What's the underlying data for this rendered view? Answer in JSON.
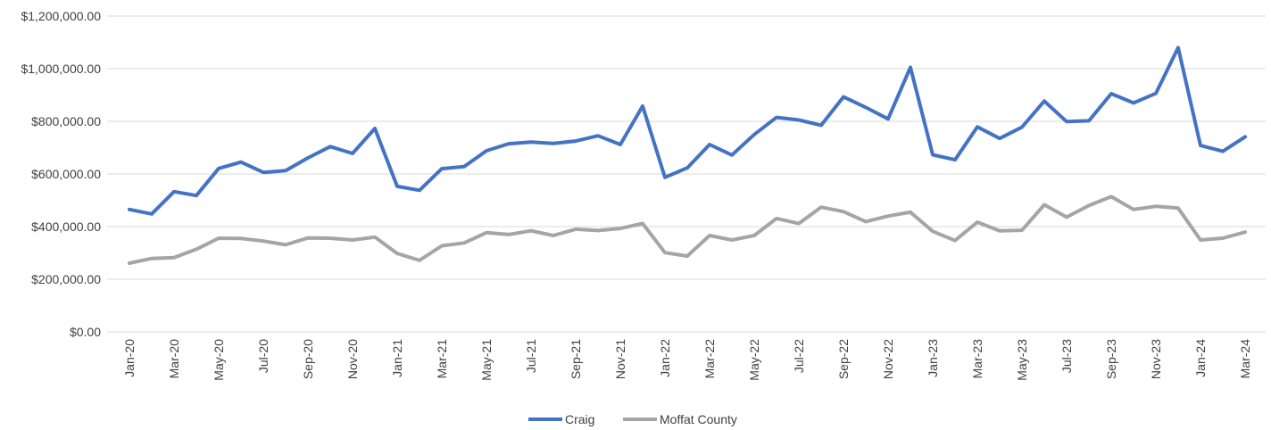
{
  "chart_data": {
    "type": "line",
    "title": "",
    "xlabel": "",
    "ylabel": "",
    "ylim": [
      0,
      1200000
    ],
    "y_ticks": [
      {
        "value": 0,
        "label": "$0.00"
      },
      {
        "value": 200000,
        "label": "$200,000.00"
      },
      {
        "value": 400000,
        "label": "$400,000.00"
      },
      {
        "value": 600000,
        "label": "$600,000.00"
      },
      {
        "value": 800000,
        "label": "$800,000.00"
      },
      {
        "value": 1000000,
        "label": "$1,000,000.00"
      },
      {
        "value": 1200000,
        "label": "$1,200,000.00"
      }
    ],
    "grid": "horizontal",
    "legend_position": "bottom-center",
    "categories": [
      "Jan-20",
      "Feb-20",
      "Mar-20",
      "Apr-20",
      "May-20",
      "Jun-20",
      "Jul-20",
      "Aug-20",
      "Sep-20",
      "Oct-20",
      "Nov-20",
      "Dec-20",
      "Jan-21",
      "Feb-21",
      "Mar-21",
      "Apr-21",
      "May-21",
      "Jun-21",
      "Jul-21",
      "Aug-21",
      "Sep-21",
      "Oct-21",
      "Nov-21",
      "Dec-21",
      "Jan-22",
      "Feb-22",
      "Mar-22",
      "Apr-22",
      "May-22",
      "Jun-22",
      "Jul-22",
      "Aug-22",
      "Sep-22",
      "Oct-22",
      "Nov-22",
      "Dec-22",
      "Jan-23",
      "Feb-23",
      "Mar-23",
      "Apr-23",
      "May-23",
      "Jun-23",
      "Jul-23",
      "Aug-23",
      "Sep-23",
      "Oct-23",
      "Nov-23",
      "Dec-23",
      "Jan-24",
      "Feb-24",
      "Mar-24"
    ],
    "x_tick_labels": [
      "Jan-20",
      "Mar-20",
      "May-20",
      "Jul-20",
      "Sep-20",
      "Nov-20",
      "Jan-21",
      "Mar-21",
      "May-21",
      "Jul-21",
      "Sep-21",
      "Nov-21",
      "Jan-22",
      "Mar-22",
      "May-22",
      "Jul-22",
      "Sep-22",
      "Nov-22",
      "Jan-23",
      "Mar-23",
      "May-23",
      "Jul-23",
      "Sep-23",
      "Nov-23",
      "Jan-24",
      "Mar-24"
    ],
    "series": [
      {
        "name": "Craig",
        "color": "#4472C4",
        "values": [
          465000,
          448000,
          533000,
          518000,
          621000,
          645000,
          606000,
          613000,
          661000,
          704000,
          678000,
          773000,
          553000,
          538000,
          620000,
          628000,
          688000,
          715000,
          721000,
          716000,
          725000,
          745000,
          712000,
          858000,
          587000,
          623000,
          712000,
          672000,
          750000,
          815000,
          805000,
          785000,
          893000,
          853000,
          809000,
          1005000,
          673000,
          654000,
          779000,
          735000,
          778000,
          877000,
          799000,
          802000,
          905000,
          870000,
          906000,
          1080000,
          708000,
          686000,
          741000
        ]
      },
      {
        "name": "Moffat County",
        "color": "#A5A5A5",
        "values": [
          261000,
          279000,
          282000,
          314000,
          356000,
          355000,
          345000,
          331000,
          357000,
          356000,
          349000,
          360000,
          298000,
          272000,
          327000,
          338000,
          377000,
          370000,
          384000,
          366000,
          390000,
          385000,
          393000,
          412000,
          301000,
          288000,
          366000,
          349000,
          366000,
          431000,
          412000,
          474000,
          457000,
          419000,
          440000,
          455000,
          382000,
          347000,
          417000,
          384000,
          386000,
          483000,
          436000,
          480000,
          514000,
          465000,
          477000,
          470000,
          349000,
          356000,
          379000
        ]
      }
    ]
  }
}
